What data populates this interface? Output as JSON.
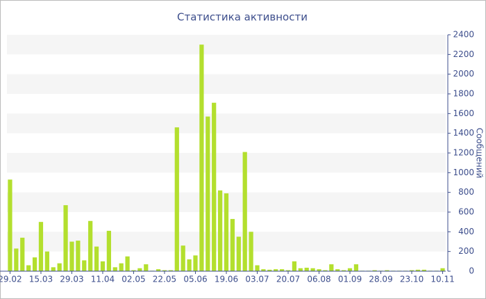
{
  "chart_data": {
    "type": "bar",
    "title": "Статистика активности",
    "y_label": "Сообщений",
    "y_axis_side": "right",
    "categories": [
      "29.02",
      null,
      null,
      null,
      null,
      "15.03",
      null,
      null,
      null,
      null,
      "29.03",
      null,
      null,
      null,
      null,
      "11.04",
      null,
      null,
      null,
      null,
      "02.05",
      null,
      null,
      null,
      null,
      "22.05",
      null,
      null,
      null,
      null,
      "05.06",
      null,
      null,
      null,
      null,
      "19.06",
      null,
      null,
      null,
      null,
      "03.07",
      null,
      null,
      null,
      null,
      "20.07",
      null,
      null,
      null,
      null,
      "06.08",
      null,
      null,
      null,
      null,
      "01.09",
      null,
      null,
      null,
      null,
      "28.09",
      null,
      null,
      null,
      null,
      "23.10",
      null,
      null,
      null,
      null,
      "10.11"
    ],
    "values": [
      930,
      230,
      340,
      60,
      140,
      500,
      200,
      40,
      80,
      670,
      300,
      310,
      110,
      510,
      250,
      100,
      410,
      40,
      80,
      150,
      10,
      30,
      70,
      5,
      20,
      10,
      10,
      1460,
      260,
      120,
      160,
      2300,
      1570,
      1710,
      820,
      790,
      530,
      350,
      1210,
      400,
      60,
      20,
      15,
      20,
      20,
      10,
      100,
      30,
      35,
      30,
      20,
      10,
      70,
      20,
      10,
      30,
      70,
      5,
      5,
      10,
      5,
      10,
      5,
      5,
      5,
      10,
      15,
      15,
      5,
      5,
      30
    ],
    "color": "#b3df2e",
    "ylim": [
      0,
      2400
    ],
    "yticks": [
      0,
      200,
      400,
      600,
      800,
      1000,
      1200,
      1400,
      1600,
      1800,
      2000,
      2200,
      2400
    ],
    "grid": "bands"
  }
}
